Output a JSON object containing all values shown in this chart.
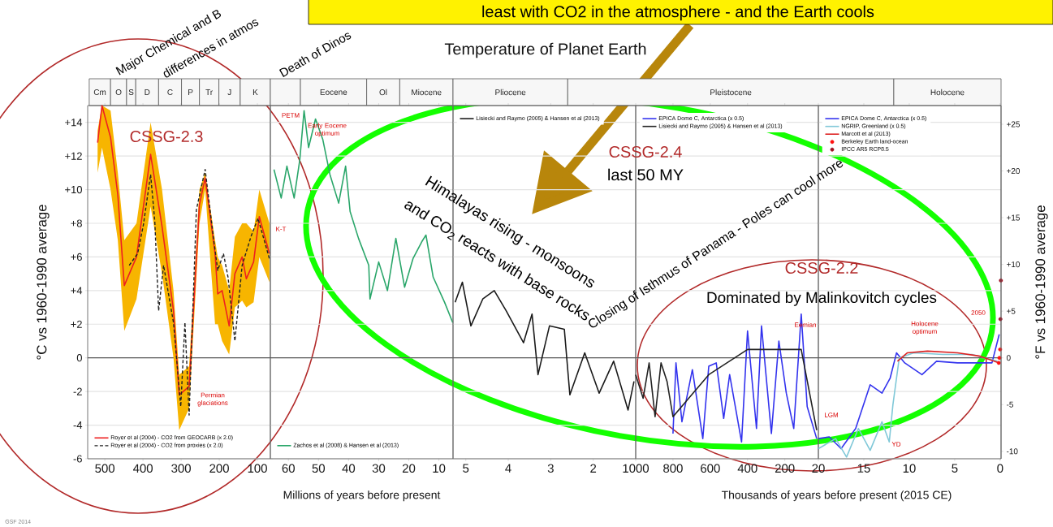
{
  "chart_data": [
    {
      "type": "line",
      "ylabel": "°C vs 1960-1990 average",
      "xlim": [
        545,
        66
      ],
      "xticks": [
        500,
        400,
        300,
        200,
        100
      ],
      "ylim": [
        -6,
        15
      ],
      "yticks": [
        -6,
        -4,
        -2,
        0,
        {
          "value": 2,
          "label": "+2"
        },
        {
          "value": 4,
          "label": "+4"
        },
        {
          "value": 6,
          "label": "+6"
        },
        {
          "value": 8,
          "label": "+8"
        },
        {
          "value": 10,
          "label": "+10"
        },
        {
          "value": 12,
          "label": "+12"
        },
        {
          "value": 14,
          "label": "+14"
        }
      ],
      "grid": "y",
      "legend": "bottom left",
      "ref_lines": [
        {
          "axis": "y",
          "value": 0
        }
      ],
      "series": [
        {
          "name": "Royer et al (2004) - CO2 from GEOCARB (x 2.0)",
          "color": "#ee2020",
          "line_style": "solid",
          "x": [
            519,
            507.5,
            485,
            466,
            449,
            417,
            380,
            350,
            320,
            305,
            279,
            252,
            237,
            211,
            204,
            192.5,
            174,
            159,
            140,
            129,
            110,
            95,
            68.5
          ],
          "values": [
            12.8,
            15.0,
            13.1,
            9.7,
            4.3,
            6.0,
            12.1,
            7.8,
            2.8,
            -2.2,
            -1.7,
            9.1,
            10.7,
            6.2,
            3.8,
            4.0,
            1.9,
            5.0,
            6.0,
            4.7,
            5.7,
            8.4,
            6.2
          ],
          "lower": [
            11,
            12.5,
            10,
            7,
            1.6,
            3.5,
            9,
            5,
            0,
            -4.3,
            -3,
            8,
            10,
            2,
            2,
            1,
            0.2,
            3,
            3.4,
            3,
            3.3,
            6,
            4.5
          ],
          "upper": [
            13.5,
            15,
            14.7,
            11,
            7,
            8,
            14,
            10,
            4,
            -1,
            -0.5,
            10,
            11,
            7,
            6,
            5.5,
            4,
            7.2,
            8,
            8,
            7.5,
            10,
            8
          ]
        },
        {
          "name": "Royer et al (2004) - CO2 from proxies (x 2.0)",
          "color": "#222222",
          "line_style": "dashed",
          "x": [
            436,
            414,
            399,
            380,
            369,
            359,
            346,
            320,
            301,
            290,
            279,
            260,
            237,
            215,
            204,
            189,
            177,
            159,
            140,
            117,
            98.5,
            68.5
          ],
          "values": [
            5.5,
            6.2,
            7.9,
            10.9,
            8.1,
            2.8,
            5.5,
            2.1,
            -2.9,
            2.1,
            -3.4,
            8.8,
            11.2,
            7.1,
            5.2,
            6.2,
            4.8,
            1.0,
            5.5,
            7.2,
            8.3,
            5.9
          ]
        }
      ],
      "annotations": [
        "Permian glaciations",
        "CSSG-2.3",
        "Major Chemical and B",
        "differences in atmos",
        "GSF 2014",
        "Cm",
        "O",
        "S",
        "D",
        "C",
        "P",
        "Tr",
        "J",
        "K"
      ]
    },
    {
      "type": "line",
      "xlabel": "Millions of years before present",
      "xlim": [
        66,
        5.3
      ],
      "xticks": [
        60,
        50,
        40,
        30,
        20,
        10
      ],
      "ylim": [
        -6,
        15
      ],
      "yticks": [
        -6,
        -4,
        -2,
        0,
        2,
        4,
        6,
        8,
        10,
        12,
        14
      ],
      "tick_labels": "x",
      "grid": "y",
      "legend": "bottom left",
      "ref_lines": [
        {
          "axis": "y",
          "value": 0
        }
      ],
      "series": [
        {
          "name": "Zachos et al (2008) & Hansen et al (2013)",
          "color": "#2aa66a",
          "x": [
            64.8,
            62.4,
            60.5,
            58.1,
            56.2,
            54.8,
            53.3,
            51,
            48.6,
            46.2,
            43.3,
            41,
            39.5,
            36.7,
            33.3,
            32.9,
            30,
            27.1,
            24.3,
            21.4,
            18.6,
            15.7,
            14.3,
            11.9,
            8.1,
            5.4
          ],
          "values": [
            11.2,
            9.5,
            11.4,
            9.5,
            11.8,
            14.7,
            12.5,
            14.2,
            13.0,
            10.9,
            9.2,
            11.4,
            8.7,
            7.1,
            5.5,
            3.5,
            5.7,
            4.0,
            7.1,
            4.2,
            5.9,
            6.9,
            7.3,
            4.8,
            3.3,
            2.1
          ]
        }
      ],
      "annotations": [
        "PETM",
        "Early Eocene optimum",
        "K-T",
        "Death of Dinos",
        "Eocene",
        "Ol",
        "Miocene"
      ]
    },
    {
      "type": "line",
      "title": "Temperature of Planet Earth",
      "xlim": [
        5.3,
        1
      ],
      "xticks": [
        5,
        4,
        3,
        2
      ],
      "ylim": [
        -6,
        15
      ],
      "yticks": [
        -6,
        -4,
        -2,
        0,
        2,
        4,
        6,
        8,
        10,
        12,
        14
      ],
      "tick_labels": "x",
      "grid": "y",
      "legend": "top left",
      "ref_lines": [
        {
          "axis": "y",
          "value": 0
        }
      ],
      "series": [
        {
          "name": "Lisiecki and Raymo (2005) & Hansen et al (2013)",
          "color": "#1a1a1a",
          "x": [
            5.25,
            5.08,
            4.88,
            4.6,
            4.33,
            4.05,
            3.64,
            3.44,
            3.3,
            3.03,
            2.68,
            2.55,
            2.2,
            1.86,
            1.52,
            1.18,
            1.04
          ],
          "values": [
            3.3,
            4.5,
            1.9,
            3.5,
            4.0,
            2.8,
            0.9,
            2.6,
            -1.0,
            1.9,
            1.7,
            -2.2,
            0.3,
            -2.1,
            -0.2,
            -3.1,
            -1.4
          ]
        }
      ],
      "annotations": [
        "Himalayas rising - monsoons",
        "and CO$_{2}$ reacts with base rocks",
        "Closing of Isthmus of Panama - Poles can cool more",
        "CSSG-2.4",
        "last 50 MY",
        "least with CO2 in the atmosphere - and the Earth cools",
        "Pliocene"
      ]
    },
    {
      "type": "line",
      "xlabel": "Thousands of years before present (2015 CE)",
      "xlim": [
        1000,
        20
      ],
      "xticks": [
        1000,
        800,
        600,
        400,
        200
      ],
      "ylim": [
        -6,
        15
      ],
      "yticks": [
        -6,
        -4,
        -2,
        0,
        2,
        4,
        6,
        8,
        10,
        12,
        14
      ],
      "tick_labels": "x",
      "grid": "y",
      "legend": "top left",
      "ref_lines": [
        {
          "axis": "y",
          "value": 0
        }
      ],
      "series": [
        {
          "name": "EPICA Dome C, Antarctica (x 0.5)",
          "color": "#3333ee",
          "x": [
            800,
            784,
            752,
            696,
            640,
            608,
            568,
            528,
            496,
            432,
            400,
            352,
            325,
            272,
            232,
            192,
            152,
            112,
            80,
            29
          ],
          "values": [
            -4.5,
            -0.3,
            -3.8,
            -0.7,
            -4.8,
            -0.5,
            -0.3,
            -3.6,
            -1.0,
            -5.0,
            1.6,
            -4.2,
            1.9,
            -4.5,
            1.0,
            -2.1,
            -4.2,
            2.6,
            -2.9,
            -4.8
          ]
        },
        {
          "name": "Lisiecki and Raymo (2005) & Hansen et al (2013)",
          "color": "#222222",
          "x": [
            1000,
            960,
            928,
            896,
            864,
            832,
            800,
            608,
            400,
            112,
            29
          ],
          "values": [
            -1.0,
            -2.4,
            -0.3,
            -3.5,
            -0.3,
            -1.4,
            -3.5,
            -1.0,
            0.5,
            0.5,
            -4.3
          ]
        }
      ],
      "annotations": [
        "Eemian",
        "CSSG-2.2",
        "Dominated by Malinkovitch cycles",
        "Pleistocene"
      ]
    },
    {
      "type": "line",
      "y2label": "°F vs 1960-1990 average",
      "xlim": [
        20,
        -0.1
      ],
      "xticks": [
        20,
        15,
        10,
        5,
        0
      ],
      "ylim": [
        -6,
        15
      ],
      "yticks": [
        -6,
        -4,
        -2,
        0,
        2,
        4,
        6,
        8,
        10,
        12,
        14
      ],
      "y2lim": [
        -10.8,
        27
      ],
      "y2ticks": [
        {
          "value": -10,
          "label": "-10"
        },
        {
          "value": -5,
          "label": "-5"
        },
        {
          "value": 0,
          "label": "0"
        },
        {
          "value": 5,
          "label": "+5"
        },
        {
          "value": 10,
          "label": "+10"
        },
        {
          "value": 15,
          "label": "+15"
        },
        {
          "value": 20,
          "label": "+20"
        },
        {
          "value": 25,
          "label": "+25"
        }
      ],
      "tick_labels": "x",
      "grid": "y",
      "legend": "top left",
      "ref_lines": [
        {
          "axis": "y",
          "value": 0
        }
      ],
      "series": [
        {
          "name": "EPICA Dome C, Antarctica (x 0.5)",
          "color": "#3333ee",
          "x": [
            20,
            18.8,
            17.5,
            15.9,
            14.3,
            13.0,
            12.1,
            11.4,
            10.5,
            8.6,
            7.0,
            4.7,
            2.8,
            0.9,
            0.1
          ],
          "values": [
            -4.8,
            -4.7,
            -5.4,
            -4.2,
            -1.6,
            -2.1,
            -1.2,
            0.3,
            -0.3,
            -1.0,
            -0.2,
            -0.3,
            -0.3,
            -0.3,
            1.4
          ]
        },
        {
          "name": "NGRIP, Greenland (x 0.5)",
          "color": "#80c8d8",
          "x": [
            20,
            18.1,
            16.9,
            15.6,
            14.3,
            13.0,
            12.2,
            11.8,
            11.1,
            9.5,
            6.3,
            3.1,
            0.3
          ],
          "values": [
            -5.4,
            -4.8,
            -5.9,
            -4.2,
            -5.5,
            -3.8,
            -5.0,
            -2.8,
            0,
            0.3,
            0.2,
            0.2,
            -0.2
          ]
        },
        {
          "name": "Marcott et al (2013)",
          "color": "#dd2222",
          "x": [
            11.3,
            10.2,
            8.0,
            4.7,
            2.2,
            0.1
          ],
          "values": [
            -0.2,
            0.3,
            0.4,
            0.3,
            0.1,
            -0.3
          ]
        },
        {
          "name": "Berkeley Earth land-ocean",
          "color": "#ff1010",
          "type": "scatter",
          "marker": "circle",
          "x": [
            0.15,
            0.08,
            0.0
          ],
          "values": [
            -0.3,
            0.0,
            0.5
          ]
        },
        {
          "name": "IPCC AR5 RCP8.5",
          "color": "#a01020",
          "type": "scatter",
          "marker": "circle",
          "x": [
            -0.035,
            -0.085
          ],
          "values": [
            2.3,
            4.6
          ]
        }
      ],
      "annotations": [
        "LGM",
        "YD",
        "Holocene optimum",
        "2050",
        "Holocene"
      ]
    }
  ]
}
